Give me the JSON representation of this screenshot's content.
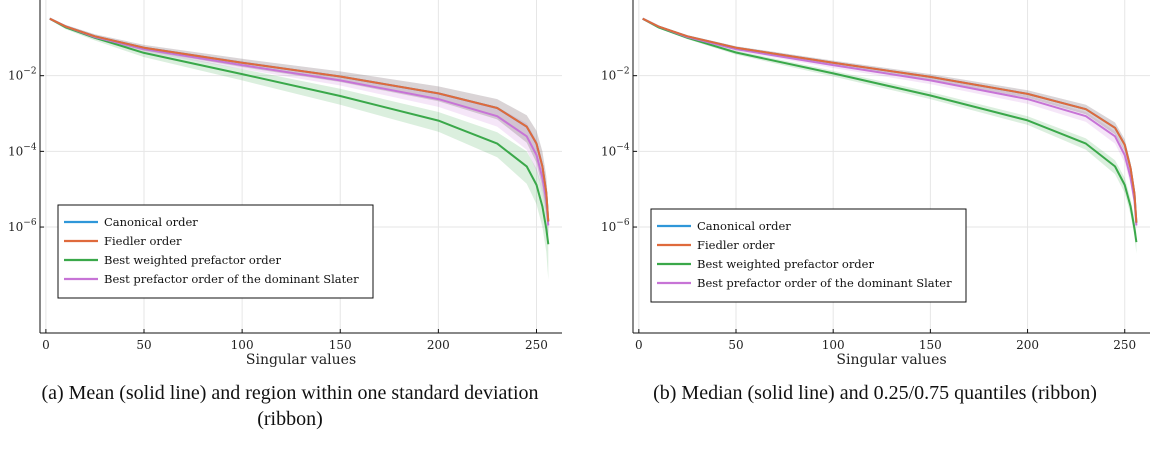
{
  "colors": {
    "canonical": "#2f97d9",
    "fiedler": "#df6a3c",
    "weighted": "#3aa84a",
    "slater": "#c774d6",
    "grid": "#e6e6e6",
    "axis": "#111111"
  },
  "chart_data": [
    {
      "type": "line",
      "caption": "(a) Mean (solid line) and region within one standard deviation (ribbon)",
      "xlabel": "Singular values",
      "ylabel": "",
      "xlim": [
        -3,
        263
      ],
      "ylim_log10": [
        -8.8,
        0
      ],
      "xticks": [
        0,
        50,
        100,
        150,
        200,
        250
      ],
      "yticks": [
        {
          "label": "10",
          "exp": "−2",
          "value": 0.01
        },
        {
          "label": "10",
          "exp": "−4",
          "value": 0.0001
        },
        {
          "label": "10",
          "exp": "−6",
          "value": 1e-06
        }
      ],
      "grid": true,
      "legend_position": "lower-left",
      "series": [
        {
          "name": "Canonical order",
          "color_key": "canonical",
          "x": [
            2,
            10,
            25,
            50,
            100,
            150,
            200,
            230,
            245,
            250,
            253,
            255,
            256
          ],
          "y": [
            0.32,
            0.2,
            0.11,
            0.055,
            0.022,
            0.0095,
            0.0034,
            0.0014,
            0.00045,
            0.00016,
            4e-05,
            8e-06,
            1.4e-06
          ],
          "band_lo": [
            0.3,
            0.18,
            0.095,
            0.046,
            0.017,
            0.0068,
            0.0021,
            0.0007,
            0.00017,
            5e-05,
            1.1e-05,
            2.5e-06,
            6e-07
          ],
          "band_hi": [
            0.34,
            0.22,
            0.125,
            0.065,
            0.028,
            0.013,
            0.0052,
            0.0024,
            0.0009,
            0.00035,
            0.0001,
            2.2e-05,
            3.5e-06
          ]
        },
        {
          "name": "Fiedler order",
          "color_key": "fiedler",
          "x": [
            2,
            10,
            25,
            50,
            100,
            150,
            200,
            230,
            245,
            250,
            253,
            255,
            256
          ],
          "y": [
            0.32,
            0.2,
            0.11,
            0.055,
            0.022,
            0.0095,
            0.0034,
            0.0014,
            0.00045,
            0.00016,
            4e-05,
            8e-06,
            1.4e-06
          ],
          "band_lo": [
            0.3,
            0.18,
            0.095,
            0.046,
            0.017,
            0.0068,
            0.0021,
            0.0007,
            0.00017,
            5e-05,
            1.1e-05,
            2.5e-06,
            6e-07
          ],
          "band_hi": [
            0.34,
            0.22,
            0.125,
            0.065,
            0.028,
            0.013,
            0.0052,
            0.0024,
            0.0009,
            0.00035,
            0.0001,
            2.2e-05,
            3.5e-06
          ]
        },
        {
          "name": "Best weighted prefactor order",
          "color_key": "weighted",
          "x": [
            2,
            10,
            25,
            50,
            100,
            150,
            200,
            230,
            245,
            250,
            253,
            255,
            256
          ],
          "y": [
            0.32,
            0.19,
            0.1,
            0.04,
            0.011,
            0.0029,
            0.00065,
            0.00016,
            4e-05,
            1.3e-05,
            3.5e-06,
            9e-07,
            3.5e-07
          ],
          "band_lo": [
            0.3,
            0.17,
            0.085,
            0.031,
            0.0075,
            0.0017,
            0.00033,
            7e-05,
            1.4e-05,
            4e-06,
            1e-06,
            2.2e-07,
            4e-08
          ],
          "band_hi": [
            0.34,
            0.21,
            0.115,
            0.05,
            0.015,
            0.0045,
            0.0011,
            0.00032,
            0.0001,
            3.5e-05,
            1.1e-05,
            3.5e-06,
            1.5e-06
          ]
        },
        {
          "name": "Best prefactor order of the dominant Slater",
          "color_key": "slater",
          "x": [
            2,
            10,
            25,
            50,
            100,
            150,
            200,
            230,
            245,
            250,
            253,
            255,
            256
          ],
          "y": [
            0.32,
            0.2,
            0.105,
            0.05,
            0.019,
            0.0075,
            0.0024,
            0.00085,
            0.00025,
            8e-05,
            2e-05,
            5e-06,
            1.1e-06
          ],
          "band_lo": [
            0.3,
            0.18,
            0.092,
            0.042,
            0.015,
            0.0055,
            0.0015,
            0.00045,
            0.00011,
            3e-05,
            7.5e-06,
            1.8e-06,
            5e-07
          ],
          "band_hi": [
            0.34,
            0.22,
            0.118,
            0.058,
            0.024,
            0.01,
            0.0036,
            0.0015,
            0.00055,
            0.0002,
            5.5e-05,
            1.4e-05,
            2.5e-06
          ]
        }
      ]
    },
    {
      "type": "line",
      "caption": "(b) Median (solid line) and 0.25/0.75 quantiles (ribbon)",
      "xlabel": "Singular values",
      "ylabel": "",
      "xlim": [
        -3,
        263
      ],
      "ylim_log10": [
        -8.8,
        0
      ],
      "xticks": [
        0,
        50,
        100,
        150,
        200,
        250
      ],
      "yticks": [
        {
          "label": "10",
          "exp": "−2",
          "value": 0.01
        },
        {
          "label": "10",
          "exp": "−4",
          "value": 0.0001
        },
        {
          "label": "10",
          "exp": "−6",
          "value": 1e-06
        }
      ],
      "grid": true,
      "legend_position": "lower-left",
      "series": [
        {
          "name": "Canonical order",
          "color_key": "canonical",
          "x": [
            2,
            10,
            25,
            50,
            100,
            150,
            200,
            230,
            245,
            250,
            253,
            255,
            256
          ],
          "y": [
            0.32,
            0.2,
            0.11,
            0.055,
            0.022,
            0.0093,
            0.0033,
            0.0013,
            0.00042,
            0.00015,
            3.6e-05,
            7.5e-06,
            1.3e-06
          ],
          "band_lo": [
            0.31,
            0.19,
            0.1,
            0.05,
            0.019,
            0.0078,
            0.0026,
            0.00095,
            0.00028,
            0.0001,
            2.4e-05,
            4.8e-06,
            9e-07
          ],
          "band_hi": [
            0.33,
            0.21,
            0.118,
            0.06,
            0.025,
            0.011,
            0.0041,
            0.0017,
            0.00058,
            0.00021,
            5e-05,
            1e-05,
            1.8e-06
          ]
        },
        {
          "name": "Fiedler order",
          "color_key": "fiedler",
          "x": [
            2,
            10,
            25,
            50,
            100,
            150,
            200,
            230,
            245,
            250,
            253,
            255,
            256
          ],
          "y": [
            0.32,
            0.2,
            0.11,
            0.055,
            0.022,
            0.0093,
            0.0033,
            0.0013,
            0.00042,
            0.00015,
            3.6e-05,
            7.5e-06,
            1.3e-06
          ],
          "band_lo": [
            0.31,
            0.19,
            0.1,
            0.05,
            0.019,
            0.0078,
            0.0026,
            0.00095,
            0.00028,
            0.0001,
            2.4e-05,
            4.8e-06,
            9e-07
          ],
          "band_hi": [
            0.33,
            0.21,
            0.118,
            0.06,
            0.025,
            0.011,
            0.0041,
            0.0017,
            0.00058,
            0.00021,
            5e-05,
            1e-05,
            1.8e-06
          ]
        },
        {
          "name": "Best weighted prefactor order",
          "color_key": "weighted",
          "x": [
            2,
            10,
            25,
            50,
            100,
            150,
            200,
            230,
            245,
            250,
            253,
            255,
            256
          ],
          "y": [
            0.32,
            0.19,
            0.1,
            0.041,
            0.0115,
            0.003,
            0.00066,
            0.00016,
            4e-05,
            1.3e-05,
            3.5e-06,
            9e-07,
            4e-07
          ],
          "band_lo": [
            0.31,
            0.18,
            0.092,
            0.036,
            0.0095,
            0.0024,
            0.0005,
            0.00011,
            2.5e-05,
            8e-06,
            2.1e-06,
            5.5e-07,
            2e-07
          ],
          "band_hi": [
            0.33,
            0.2,
            0.108,
            0.046,
            0.0135,
            0.0037,
            0.00085,
            0.00022,
            5.8e-05,
            2e-05,
            5.5e-06,
            1.5e-06,
            7e-07
          ]
        },
        {
          "name": "Best prefactor order of the dominant Slater",
          "color_key": "slater",
          "x": [
            2,
            10,
            25,
            50,
            100,
            150,
            200,
            230,
            245,
            250,
            253,
            255,
            256
          ],
          "y": [
            0.32,
            0.2,
            0.105,
            0.05,
            0.019,
            0.0075,
            0.0024,
            0.00085,
            0.00025,
            8e-05,
            2e-05,
            5e-06,
            1.1e-06
          ],
          "band_lo": [
            0.31,
            0.19,
            0.097,
            0.045,
            0.016,
            0.006,
            0.0018,
            0.0006,
            0.00016,
            5e-05,
            1.3e-05,
            3.2e-06,
            8e-07
          ],
          "band_hi": [
            0.33,
            0.21,
            0.113,
            0.055,
            0.022,
            0.0092,
            0.003,
            0.0011,
            0.00034,
            0.00011,
            2.8e-05,
            7e-06,
            1.4e-06
          ]
        }
      ]
    }
  ]
}
